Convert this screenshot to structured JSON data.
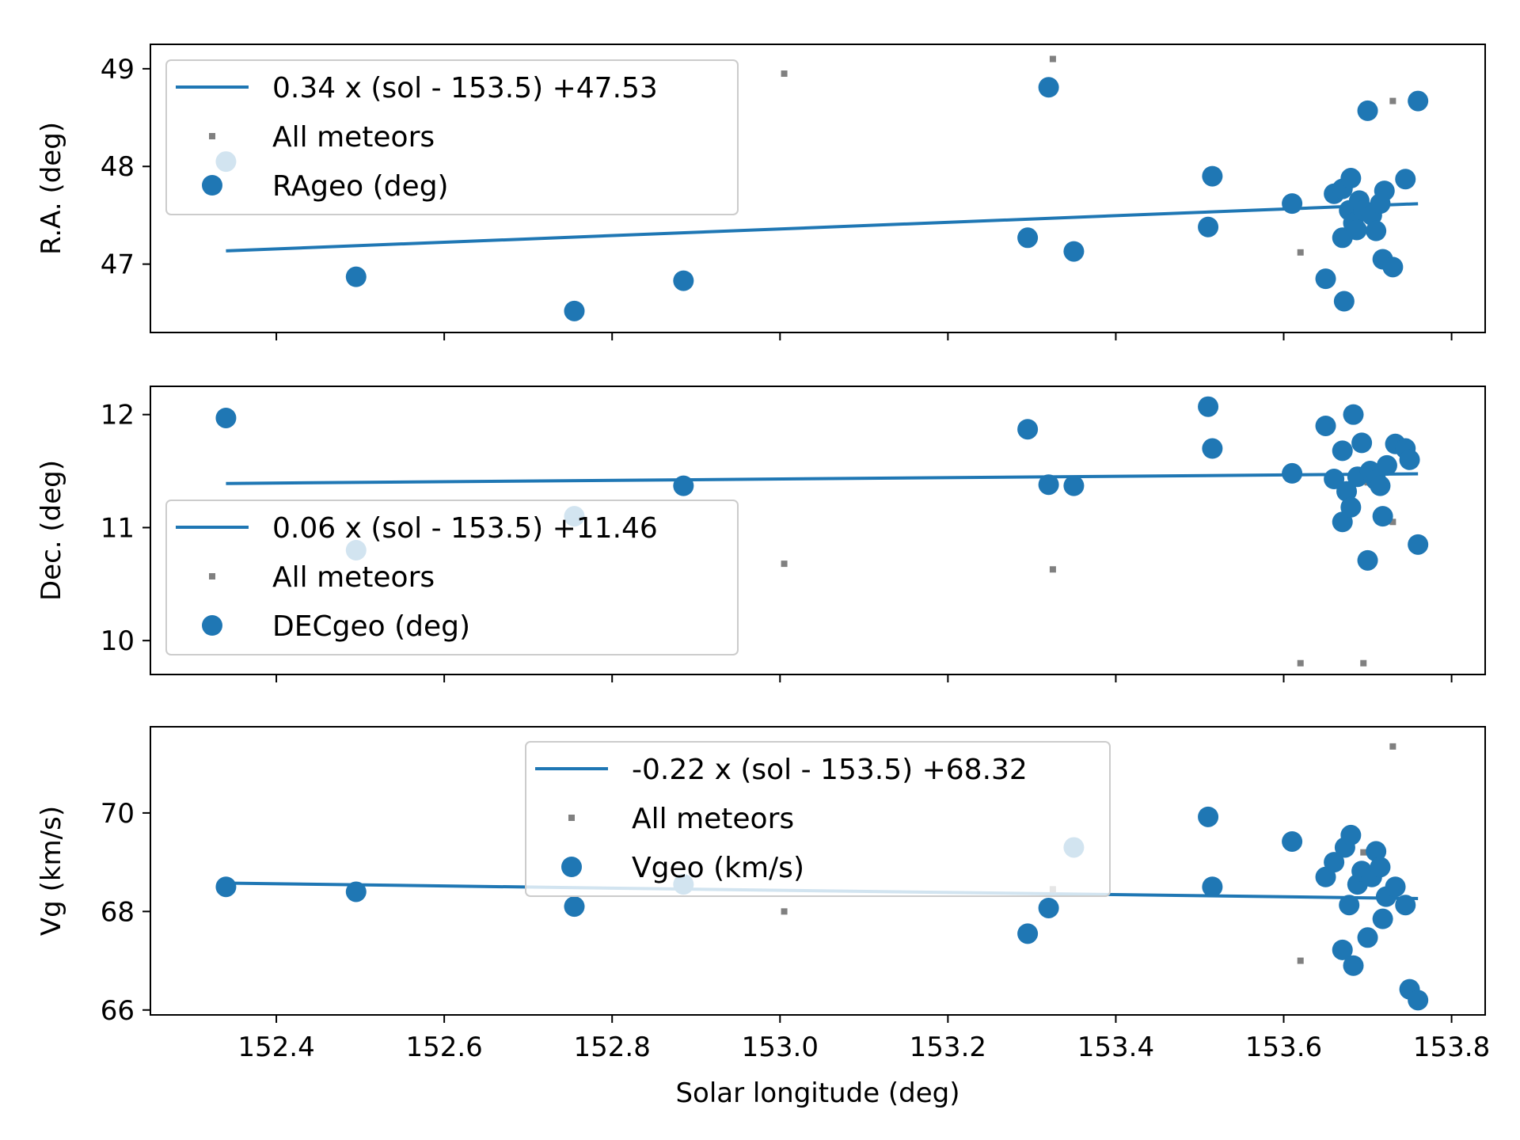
{
  "colors": {
    "series": "#1f77b4",
    "all_meteors": "#808080",
    "axes": "#000000",
    "legend_border": "#cccccc"
  },
  "xaxis": {
    "label": "Solar longitude (deg)",
    "range": [
      152.25,
      153.84
    ],
    "ticks": [
      152.4,
      152.6,
      152.8,
      153.0,
      153.2,
      153.4,
      153.6,
      153.8
    ],
    "tick_labels": [
      "152.4",
      "152.6",
      "152.8",
      "153.0",
      "153.2",
      "153.4",
      "153.6",
      "153.8"
    ]
  },
  "chart_data": [
    {
      "type": "scatter",
      "ylabel": "R.A. (deg)",
      "ylim": [
        46.3,
        49.25
      ],
      "yticks": [
        47,
        48,
        49
      ],
      "ytick_labels": [
        "47",
        "48",
        "49"
      ],
      "legend_position": "upper-left",
      "fit": {
        "label": "0.34 x (sol - 153.5) +47.53",
        "slope": 0.34,
        "center": 153.5,
        "intercept": 47.53,
        "x_range": [
          152.34,
          153.76
        ]
      },
      "all_meteors": {
        "label": "All meteors",
        "points": [
          [
            152.34,
            48.05
          ],
          [
            153.005,
            48.95
          ],
          [
            153.325,
            49.1
          ],
          [
            153.62,
            47.12
          ],
          [
            153.73,
            48.67
          ],
          [
            153.695,
            47.7
          ],
          [
            153.69,
            47.45
          ]
        ]
      },
      "series": {
        "label": "RAgeo (deg)",
        "points": [
          [
            152.34,
            48.05
          ],
          [
            152.495,
            46.87
          ],
          [
            152.755,
            46.52
          ],
          [
            152.885,
            46.83
          ],
          [
            153.295,
            47.27
          ],
          [
            153.32,
            48.81
          ],
          [
            153.35,
            47.13
          ],
          [
            153.51,
            47.38
          ],
          [
            153.515,
            47.9
          ],
          [
            153.61,
            47.62
          ],
          [
            153.65,
            46.85
          ],
          [
            153.66,
            47.72
          ],
          [
            153.67,
            47.77
          ],
          [
            153.67,
            47.27
          ],
          [
            153.672,
            46.62
          ],
          [
            153.678,
            47.55
          ],
          [
            153.68,
            47.88
          ],
          [
            153.683,
            47.42
          ],
          [
            153.687,
            47.35
          ],
          [
            153.69,
            47.65
          ],
          [
            153.695,
            47.55
          ],
          [
            153.7,
            48.57
          ],
          [
            153.705,
            47.5
          ],
          [
            153.71,
            47.34
          ],
          [
            153.715,
            47.62
          ],
          [
            153.718,
            47.05
          ],
          [
            153.72,
            47.75
          ],
          [
            153.73,
            46.97
          ],
          [
            153.745,
            47.87
          ],
          [
            153.76,
            48.67
          ]
        ]
      }
    },
    {
      "type": "scatter",
      "ylabel": "Dec. (deg)",
      "ylim": [
        9.7,
        12.25
      ],
      "yticks": [
        10,
        11,
        12
      ],
      "ytick_labels": [
        "10",
        "11",
        "12"
      ],
      "legend_position": "lower-left",
      "fit": {
        "label": "0.06 x (sol - 153.5) +11.46",
        "slope": 0.06,
        "center": 153.5,
        "intercept": 11.46,
        "x_range": [
          152.34,
          153.76
        ]
      },
      "all_meteors": {
        "label": "All meteors",
        "points": [
          [
            153.005,
            10.68
          ],
          [
            153.325,
            10.63
          ],
          [
            153.62,
            9.8
          ],
          [
            153.695,
            9.8
          ],
          [
            153.73,
            11.05
          ],
          [
            153.7,
            11.4
          ]
        ]
      },
      "series": {
        "label": "DECgeo (deg)",
        "points": [
          [
            152.34,
            11.97
          ],
          [
            152.495,
            10.8
          ],
          [
            152.755,
            11.1
          ],
          [
            152.885,
            11.37
          ],
          [
            153.295,
            11.87
          ],
          [
            153.32,
            11.38
          ],
          [
            153.35,
            11.37
          ],
          [
            153.51,
            12.07
          ],
          [
            153.515,
            11.7
          ],
          [
            153.61,
            11.48
          ],
          [
            153.65,
            11.9
          ],
          [
            153.66,
            11.43
          ],
          [
            153.67,
            11.68
          ],
          [
            153.67,
            11.05
          ],
          [
            153.675,
            11.32
          ],
          [
            153.68,
            11.18
          ],
          [
            153.683,
            12.0
          ],
          [
            153.688,
            11.45
          ],
          [
            153.693,
            11.75
          ],
          [
            153.7,
            10.71
          ],
          [
            153.703,
            11.5
          ],
          [
            153.71,
            11.42
          ],
          [
            153.715,
            11.37
          ],
          [
            153.718,
            11.1
          ],
          [
            153.723,
            11.55
          ],
          [
            153.733,
            11.74
          ],
          [
            153.745,
            11.7
          ],
          [
            153.75,
            11.6
          ],
          [
            153.76,
            10.85
          ]
        ]
      }
    },
    {
      "type": "scatter",
      "ylabel": "Vg (km/s)",
      "ylim": [
        65.9,
        71.75
      ],
      "yticks": [
        66,
        68,
        70
      ],
      "ytick_labels": [
        "66",
        "68",
        "70"
      ],
      "legend_position": "upper-center",
      "fit": {
        "label": "-0.22 x (sol - 153.5) +68.32",
        "slope": -0.22,
        "center": 153.5,
        "intercept": 68.32,
        "x_range": [
          152.34,
          153.76
        ]
      },
      "all_meteors": {
        "label": "All meteors",
        "points": [
          [
            153.005,
            68.0
          ],
          [
            153.325,
            68.45
          ],
          [
            153.62,
            67.0
          ],
          [
            153.695,
            69.2
          ],
          [
            153.73,
            71.35
          ]
        ]
      },
      "series": {
        "label": "Vgeo (km/s)",
        "points": [
          [
            152.34,
            68.5
          ],
          [
            152.495,
            68.4
          ],
          [
            152.755,
            68.1
          ],
          [
            152.885,
            68.55
          ],
          [
            153.295,
            67.55
          ],
          [
            153.32,
            68.07
          ],
          [
            153.35,
            69.3
          ],
          [
            153.51,
            69.92
          ],
          [
            153.515,
            68.5
          ],
          [
            153.61,
            69.42
          ],
          [
            153.65,
            68.7
          ],
          [
            153.66,
            69.0
          ],
          [
            153.67,
            67.22
          ],
          [
            153.673,
            69.3
          ],
          [
            153.678,
            68.13
          ],
          [
            153.68,
            69.55
          ],
          [
            153.683,
            66.9
          ],
          [
            153.688,
            68.55
          ],
          [
            153.693,
            68.82
          ],
          [
            153.7,
            67.47
          ],
          [
            153.705,
            68.7
          ],
          [
            153.71,
            69.22
          ],
          [
            153.715,
            68.9
          ],
          [
            153.718,
            67.85
          ],
          [
            153.722,
            68.3
          ],
          [
            153.733,
            68.5
          ],
          [
            153.745,
            68.13
          ],
          [
            153.75,
            66.42
          ],
          [
            153.76,
            66.2
          ]
        ]
      }
    }
  ]
}
